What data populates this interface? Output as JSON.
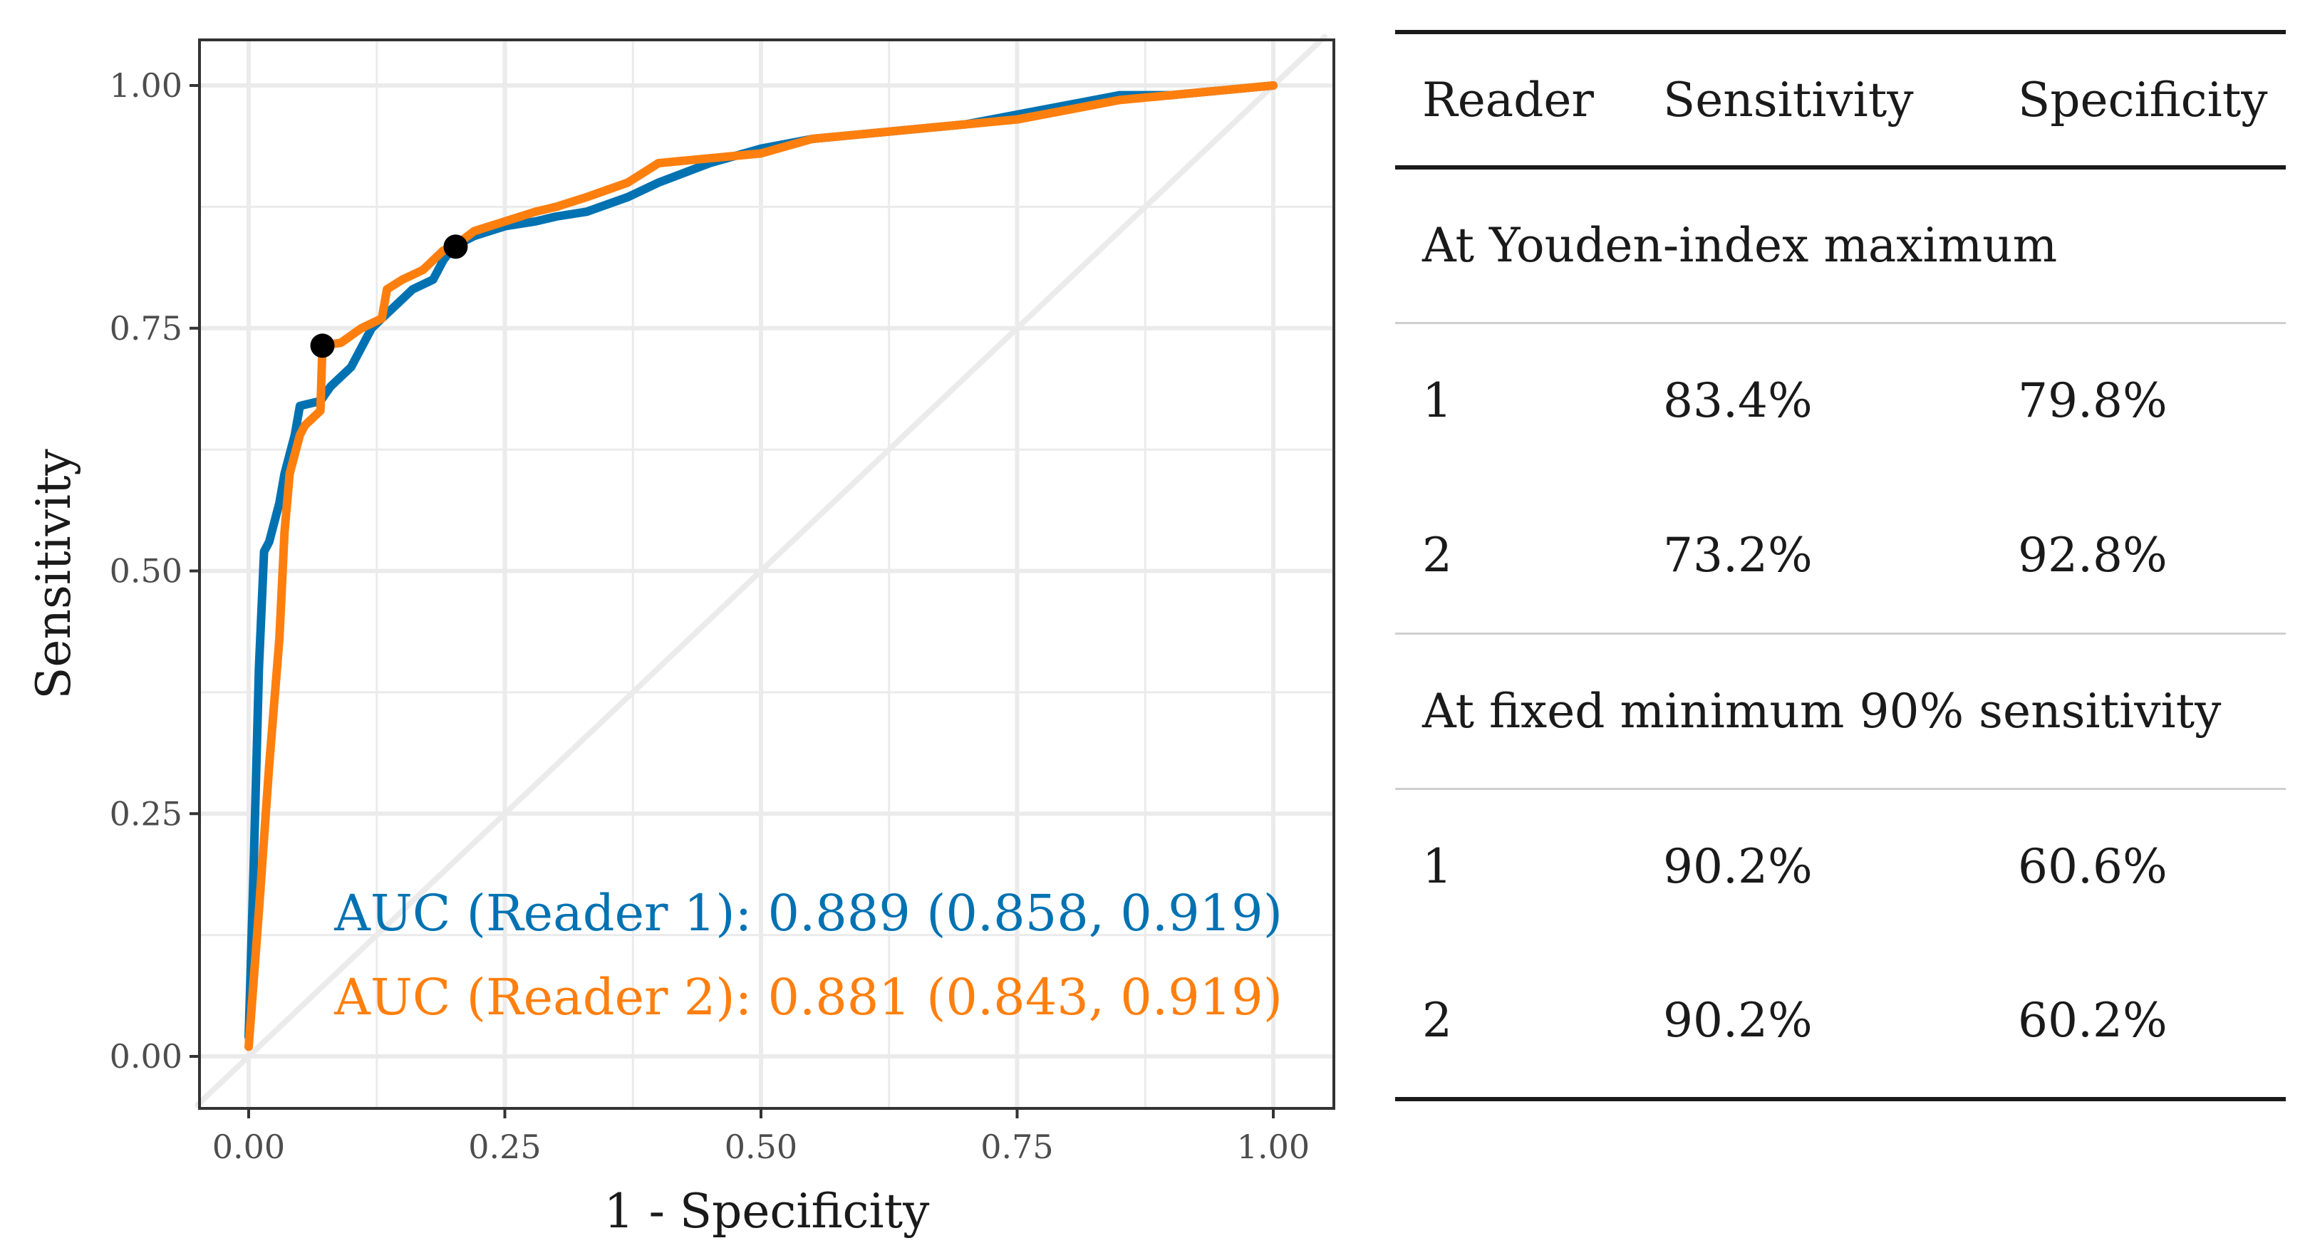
{
  "chart_data": {
    "type": "line",
    "title": "",
    "xlabel": "1 - Specificity",
    "ylabel": "Sensitivity",
    "xlim": [
      0,
      1
    ],
    "ylim": [
      0,
      1
    ],
    "xticks": [
      "0.00",
      "0.25",
      "0.50",
      "0.75",
      "1.00"
    ],
    "yticks": [
      "0.00",
      "0.25",
      "0.50",
      "0.75",
      "1.00"
    ],
    "grid": true,
    "reference_line": {
      "x": [
        0,
        1
      ],
      "y": [
        0,
        1
      ],
      "color": "#ebebeb"
    },
    "series": [
      {
        "name": "Reader 1",
        "color": "#0072b2",
        "x": [
          0,
          0.005,
          0.01,
          0.015,
          0.02,
          0.03,
          0.035,
          0.045,
          0.05,
          0.07,
          0.08,
          0.1,
          0.11,
          0.12,
          0.13,
          0.15,
          0.16,
          0.18,
          0.19,
          0.2,
          0.22,
          0.25,
          0.28,
          0.3,
          0.33,
          0.37,
          0.4,
          0.45,
          0.5,
          0.55,
          0.6,
          0.65,
          0.7,
          0.75,
          0.8,
          0.85,
          0.9,
          0.95,
          1.0
        ],
        "y": [
          0.02,
          0.2,
          0.4,
          0.52,
          0.53,
          0.57,
          0.6,
          0.64,
          0.67,
          0.675,
          0.69,
          0.71,
          0.73,
          0.75,
          0.76,
          0.78,
          0.79,
          0.8,
          0.82,
          0.834,
          0.845,
          0.855,
          0.86,
          0.865,
          0.87,
          0.885,
          0.9,
          0.92,
          0.935,
          0.945,
          0.95,
          0.955,
          0.96,
          0.97,
          0.98,
          0.99,
          0.99,
          0.995,
          1.0
        ]
      },
      {
        "name": "Reader 2",
        "color": "#ff7f0e",
        "x": [
          0,
          0.01,
          0.02,
          0.03,
          0.035,
          0.04,
          0.05,
          0.055,
          0.07,
          0.072,
          0.09,
          0.11,
          0.13,
          0.135,
          0.15,
          0.17,
          0.19,
          0.2,
          0.22,
          0.25,
          0.28,
          0.3,
          0.33,
          0.37,
          0.4,
          0.45,
          0.5,
          0.55,
          0.6,
          0.65,
          0.7,
          0.75,
          0.8,
          0.85,
          0.9,
          0.95,
          1.0
        ],
        "y": [
          0.01,
          0.15,
          0.3,
          0.43,
          0.54,
          0.6,
          0.64,
          0.65,
          0.665,
          0.732,
          0.735,
          0.75,
          0.76,
          0.79,
          0.8,
          0.81,
          0.83,
          0.834,
          0.85,
          0.86,
          0.87,
          0.875,
          0.885,
          0.9,
          0.92,
          0.925,
          0.93,
          0.945,
          0.95,
          0.955,
          0.96,
          0.965,
          0.975,
          0.985,
          0.99,
          0.995,
          1.0
        ]
      }
    ],
    "points": [
      {
        "name": "Reader 2 Youden optimum",
        "x": 0.072,
        "y": 0.732,
        "color": "#000000"
      },
      {
        "name": "Reader 1 Youden optimum",
        "x": 0.202,
        "y": 0.834,
        "color": "#000000"
      }
    ],
    "annotations": [
      {
        "text": "AUC (Reader 1): 0.889 (0.858, 0.919)",
        "color": "#0072b2"
      },
      {
        "text": "AUC (Reader 2): 0.881 (0.843, 0.919)",
        "color": "#ff7f0e"
      }
    ]
  },
  "table": {
    "headers": [
      "Reader",
      "Sensitivity",
      "Specificity"
    ],
    "groups": [
      {
        "title": "At Youden-index maximum",
        "rows": [
          [
            "1",
            "83.4%",
            "79.8%"
          ],
          [
            "2",
            "73.2%",
            "92.8%"
          ]
        ]
      },
      {
        "title": "At fixed minimum 90% sensitivity",
        "rows": [
          [
            "1",
            "90.2%",
            "60.6%"
          ],
          [
            "2",
            "90.2%",
            "60.2%"
          ]
        ]
      }
    ]
  }
}
